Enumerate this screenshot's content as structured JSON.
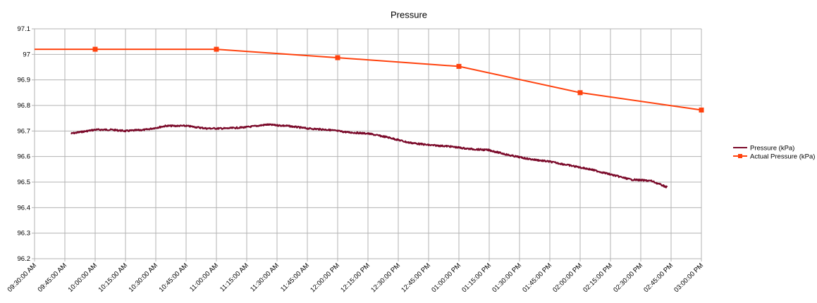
{
  "chart_data": {
    "type": "line",
    "title": "Pressure",
    "xlabel": "",
    "ylabel": "",
    "grid": true,
    "legend_position": "right",
    "x_ticks": [
      "09:30:00 AM",
      "09:45:00 AM",
      "10:00:00 AM",
      "10:15:00 AM",
      "10:30:00 AM",
      "10:45:00 AM",
      "11:00:00 AM",
      "11:15:00 AM",
      "11:30:00 AM",
      "11:45:00 AM",
      "12:00:00 PM",
      "12:15:00 PM",
      "12:30:00 PM",
      "12:45:00 PM",
      "01:00:00 PM",
      "01:15:00 PM",
      "01:30:00 PM",
      "01:45:00 PM",
      "02:00:00 PM",
      "02:15:00 PM",
      "02:30:00 PM",
      "02:45:00 PM",
      "03:00:00 PM"
    ],
    "y_ticks": [
      "96.2",
      "96.3",
      "96.4",
      "96.5",
      "96.6",
      "96.7",
      "96.8",
      "96.9",
      "97",
      "97.1"
    ],
    "xlim": [
      "09:30",
      "15:00"
    ],
    "ylim": [
      96.2,
      97.1
    ],
    "series": [
      {
        "name": "Pressure (kPa)",
        "color": "#7b0a2a",
        "marker": "none",
        "x": [
          "09:48",
          "10:00",
          "10:08",
          "10:15",
          "10:25",
          "10:35",
          "10:45",
          "10:55",
          "11:05",
          "11:15",
          "11:25",
          "11:35",
          "11:45",
          "11:55",
          "12:05",
          "12:15",
          "12:25",
          "12:35",
          "12:45",
          "12:55",
          "13:05",
          "13:15",
          "13:25",
          "13:35",
          "13:45",
          "13:55",
          "14:05",
          "14:15",
          "14:25",
          "14:35",
          "14:43"
        ],
        "y": [
          96.69,
          96.705,
          96.705,
          96.7,
          96.705,
          96.72,
          96.72,
          96.71,
          96.71,
          96.715,
          96.725,
          96.72,
          96.71,
          96.705,
          96.695,
          96.69,
          96.675,
          96.655,
          96.645,
          96.64,
          96.63,
          96.625,
          96.605,
          96.59,
          96.58,
          96.565,
          96.55,
          96.53,
          96.51,
          96.505,
          96.48
        ]
      },
      {
        "name": "Actual Pressure (kPa)",
        "color": "#ff420e",
        "marker": "square",
        "x": [
          "09:30",
          "10:00",
          "11:00",
          "12:00",
          "13:00",
          "14:00",
          "15:00"
        ],
        "y": [
          97.02,
          97.02,
          97.02,
          96.987,
          96.953,
          96.85,
          96.782
        ]
      }
    ]
  }
}
